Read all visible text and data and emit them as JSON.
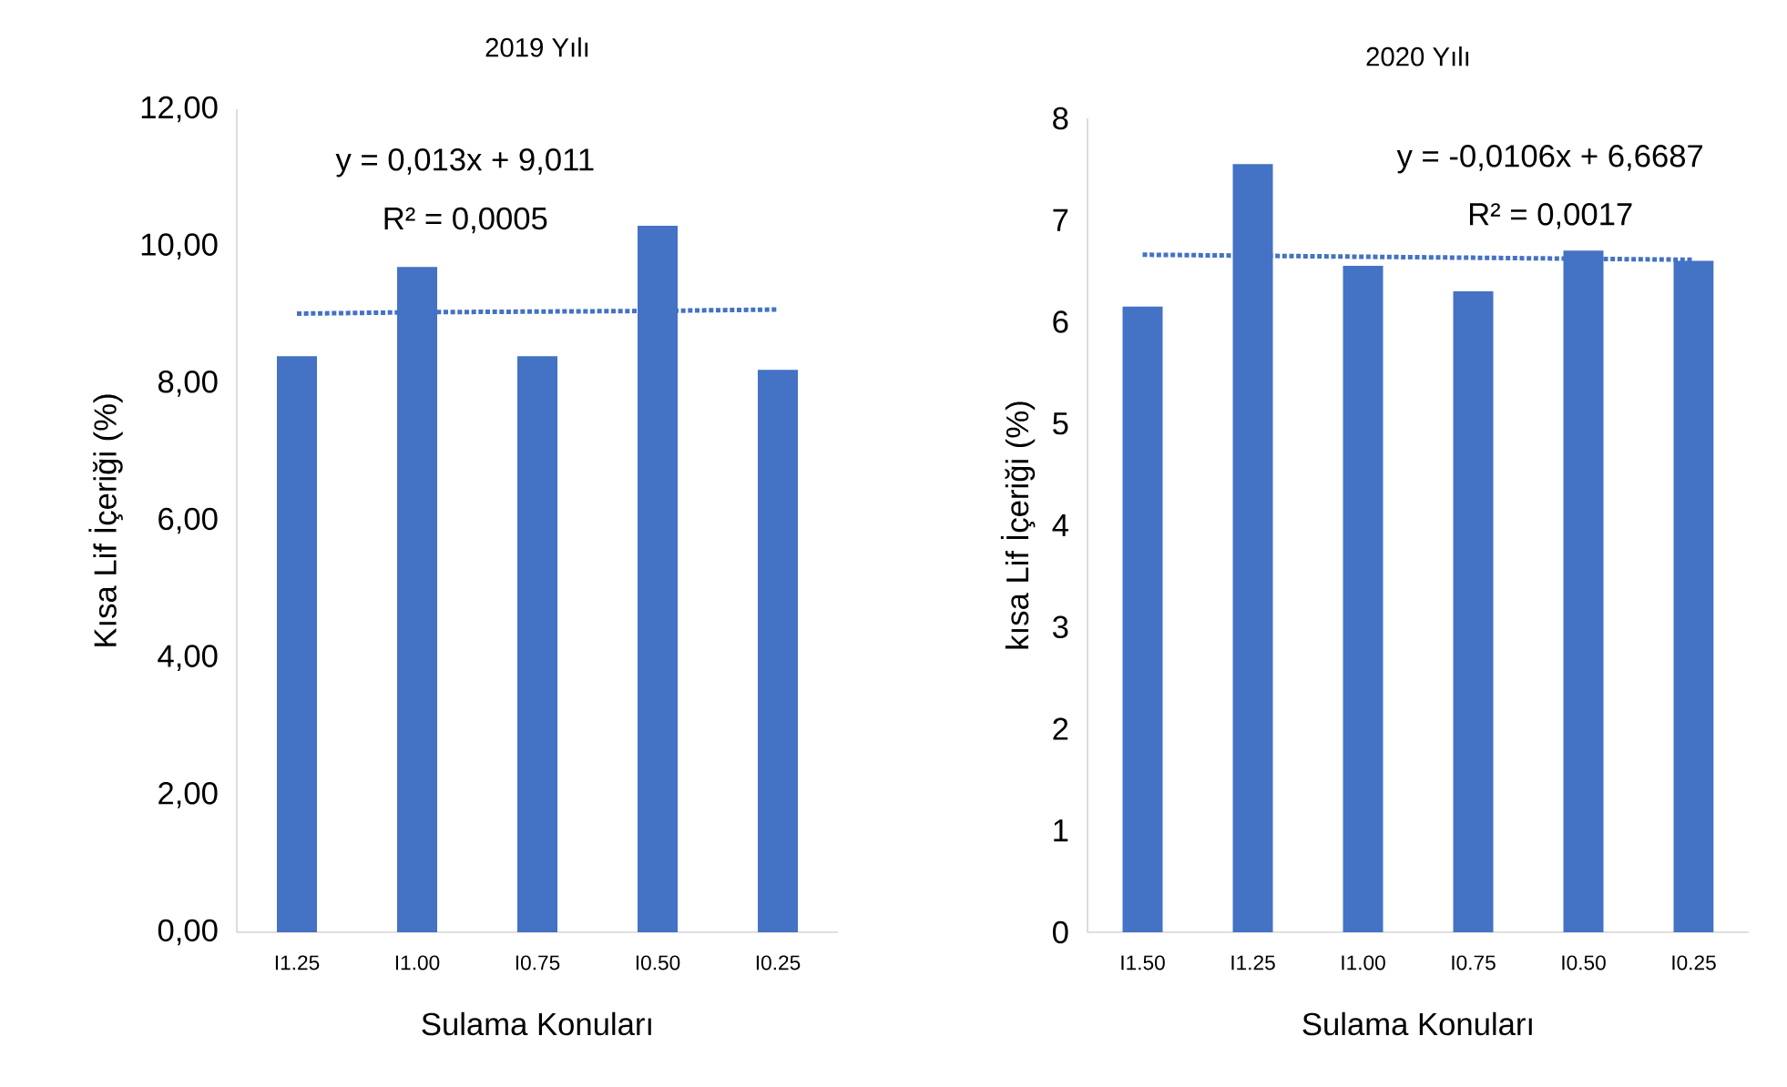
{
  "chart_data": [
    {
      "type": "bar",
      "title": "2019 Yılı",
      "xlabel": "Sulama Konuları",
      "ylabel": "Kısa Lif İçeriği (%)",
      "categories": [
        "I1.25",
        "I1.00",
        "I0.75",
        "I0.50",
        "I0.25"
      ],
      "series": [
        {
          "color": "#4472c4",
          "values": [
            8.4,
            9.7,
            8.4,
            10.3,
            8.2
          ]
        },
        {
          "type": "line",
          "color": "#4472c4",
          "line_style": "dotted",
          "values": [
            9.02,
            9.04,
            9.05,
            9.06,
            9.08
          ]
        }
      ],
      "ylim": [
        0,
        12
      ],
      "yticks": [
        {
          "value": 0,
          "label": "0,00"
        },
        {
          "value": 2,
          "label": "2,00"
        },
        {
          "value": 4,
          "label": "4,00"
        },
        {
          "value": 6,
          "label": "6,00"
        },
        {
          "value": 8,
          "label": "8,00"
        },
        {
          "value": 10,
          "label": "10,00"
        },
        {
          "value": 12,
          "label": "12,00"
        }
      ],
      "annotations": [
        "y = 0,013x + 9,011",
        "R² = 0,0005"
      ]
    },
    {
      "type": "bar",
      "title": "2020 Yılı",
      "xlabel": "Sulama Konuları",
      "ylabel": "kısa Lif İçeriği (%)",
      "categories": [
        "I1.50",
        "I1.25",
        "I1.00",
        "I0.75",
        "I0.50",
        "I0.25"
      ],
      "series": [
        {
          "color": "#4472c4",
          "values": [
            6.15,
            7.55,
            6.55,
            6.3,
            6.7,
            6.6
          ]
        },
        {
          "type": "line",
          "color": "#4472c4",
          "line_style": "dotted",
          "values": [
            6.66,
            6.65,
            6.64,
            6.63,
            6.62,
            6.61
          ]
        }
      ],
      "ylim": [
        0,
        8
      ],
      "yticks": [
        0,
        1,
        2,
        3,
        4,
        5,
        6,
        7,
        8
      ],
      "annotations": [
        "y = -0,0106x + 6,6687",
        "R² = 0,0017"
      ]
    }
  ]
}
